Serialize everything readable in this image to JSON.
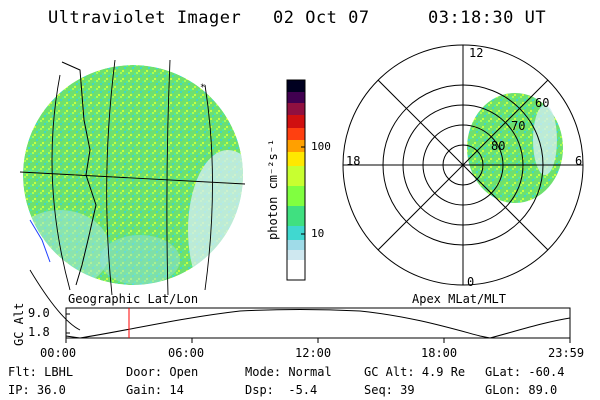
{
  "header": {
    "instrument": "Ultraviolet Imager",
    "date": "02 Oct 07",
    "time": "03:18:30 UT"
  },
  "left_panel": {
    "caption": "Geographic Lat/Lon"
  },
  "colorbar": {
    "axis_label": "photon cm⁻²s⁻¹",
    "tick_labels": [
      "100",
      "10"
    ],
    "colors": [
      "#ffffff",
      "#cfe8f0",
      "#9fdbe8",
      "#40d8d0",
      "#40e080",
      "#80ff40",
      "#c8ff30",
      "#ffe800",
      "#ffa000",
      "#ff4010",
      "#d01010",
      "#901040",
      "#400050",
      "#000020"
    ]
  },
  "polar_panel": {
    "caption": "Apex MLat/MLT",
    "hour_labels": [
      "12",
      "18",
      "6",
      "0"
    ],
    "lat_labels": [
      "60",
      "70",
      "80"
    ]
  },
  "altitude_plot": {
    "ylabel": "GC Alt",
    "yticks": [
      "9.0",
      "1.8"
    ],
    "xticks": [
      "00:00",
      "06:00",
      "12:00",
      "18:00",
      "23:59"
    ],
    "marker_time": "03:18:30",
    "marker_color": "#ff0000"
  },
  "status": {
    "row1": [
      {
        "key": "Flt:",
        "value": "LBHL"
      },
      {
        "key": "Door:",
        "value": "Open"
      },
      {
        "key": "Mode:",
        "value": "Normal"
      },
      {
        "key": "GC Alt:",
        "value": "4.9 Re"
      },
      {
        "key": "GLat:",
        "value": "-60.4"
      }
    ],
    "row2": [
      {
        "key": "IP:",
        "value": "36.0"
      },
      {
        "key": "Gain:",
        "value": "14"
      },
      {
        "key": "Dsp:",
        "value": "-5.4"
      },
      {
        "key": "Seq:",
        "value": "39"
      },
      {
        "key": "GLon:",
        "value": "89.0"
      }
    ]
  }
}
